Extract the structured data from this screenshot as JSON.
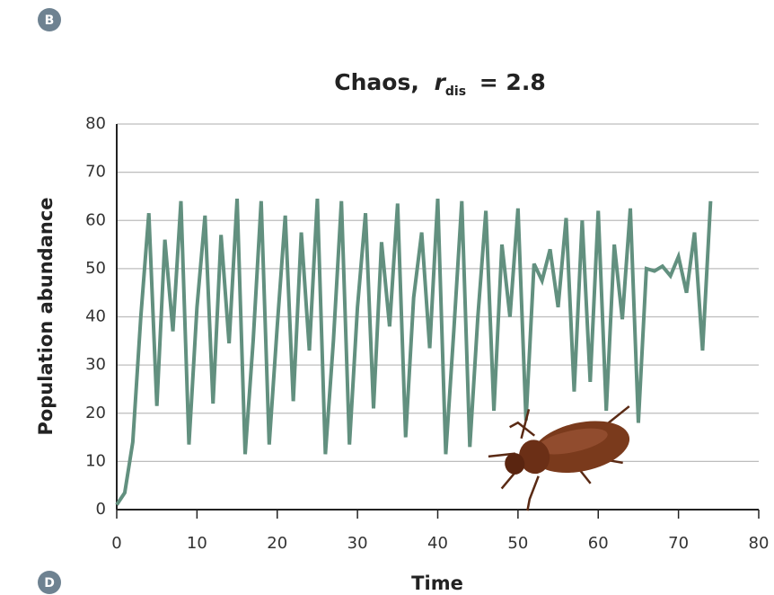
{
  "panel_labels": [
    "B",
    "D"
  ],
  "chart_data": {
    "type": "line",
    "title_parts": [
      "Chaos,",
      "r",
      "dis",
      "= 2.8"
    ],
    "x_label": "Time",
    "y_label": "Population abundance",
    "x": [
      0,
      1,
      2,
      3,
      4,
      5,
      6,
      7,
      8,
      9,
      10,
      11,
      12,
      13,
      14,
      15,
      16,
      17,
      18,
      19,
      20,
      21,
      22,
      23,
      24,
      25,
      26,
      27,
      28,
      29,
      30,
      31,
      32,
      33,
      34,
      35,
      36,
      37,
      38,
      39,
      40,
      41,
      42,
      43,
      44,
      45,
      46,
      47,
      48,
      49,
      50,
      51,
      52,
      53,
      54,
      55,
      56,
      57,
      58,
      59,
      60,
      61,
      62,
      63,
      64,
      65,
      66,
      67,
      68,
      69,
      70,
      71,
      72,
      73,
      74
    ],
    "series": [
      {
        "name": "Population",
        "color": "#62907f",
        "values": [
          1,
          3.5,
          14,
          40,
          61.5,
          21.5,
          56,
          37,
          64,
          13.5,
          42,
          61,
          22,
          57,
          34.5,
          64.5,
          11.5,
          35,
          64,
          13.5,
          38,
          61,
          22.5,
          57.5,
          33,
          64.5,
          11.5,
          35,
          64,
          13.5,
          42,
          61.5,
          21,
          55.5,
          38,
          63.5,
          15,
          44,
          57.5,
          33.5,
          64.5,
          11.5,
          37,
          64,
          13,
          40,
          62,
          20.5,
          55,
          40,
          62.5,
          18.5,
          51,
          47.5,
          54,
          42,
          60.5,
          24.5,
          60,
          26.5,
          62,
          20.5,
          55,
          39.5,
          62.5,
          18,
          50,
          49.5,
          50.5,
          48.5,
          52.5,
          45,
          57.5,
          33,
          64
        ]
      }
    ],
    "xlim": [
      0,
      80
    ],
    "xticks": [
      0,
      10,
      20,
      30,
      40,
      50,
      60,
      70,
      80
    ],
    "ylim": [
      0,
      80
    ],
    "yticks": [
      0,
      10,
      20,
      30,
      40,
      50,
      60,
      70,
      80
    ],
    "grid": true
  }
}
